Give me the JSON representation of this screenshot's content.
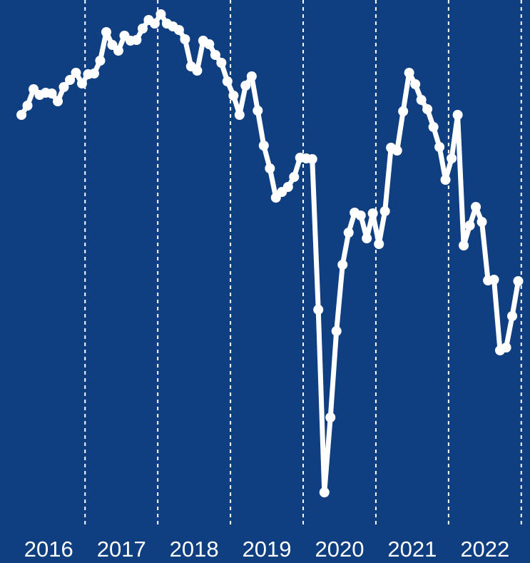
{
  "chart_data": {
    "type": "line",
    "x": [
      2016.125,
      2016.208,
      2016.292,
      2016.375,
      2016.458,
      2016.542,
      2016.625,
      2016.708,
      2016.792,
      2016.875,
      2016.958,
      2017.042,
      2017.125,
      2017.208,
      2017.292,
      2017.375,
      2017.458,
      2017.542,
      2017.625,
      2017.708,
      2017.792,
      2017.875,
      2017.958,
      2018.042,
      2018.125,
      2018.208,
      2018.292,
      2018.375,
      2018.458,
      2018.542,
      2018.625,
      2018.708,
      2018.792,
      2018.875,
      2018.958,
      2019.042,
      2019.125,
      2019.208,
      2019.292,
      2019.375,
      2019.458,
      2019.542,
      2019.625,
      2019.708,
      2019.792,
      2019.875,
      2019.958,
      2020.042,
      2020.125,
      2020.208,
      2020.292,
      2020.375,
      2020.458,
      2020.542,
      2020.625,
      2020.708,
      2020.792,
      2020.875,
      2020.958,
      2021.042,
      2021.125,
      2021.208,
      2021.292,
      2021.375,
      2021.458,
      2021.542,
      2021.625,
      2021.708,
      2021.792,
      2021.875,
      2021.958,
      2022.042,
      2022.125,
      2022.208,
      2022.292,
      2022.375,
      2022.458,
      2022.542,
      2022.625,
      2022.708,
      2022.792,
      2022.875,
      2022.958
    ],
    "values": [
      589,
      602,
      625,
      617,
      620,
      619,
      608,
      628,
      638,
      648,
      633,
      646,
      647,
      665,
      705,
      687,
      679,
      700,
      693,
      694,
      710,
      722,
      717,
      730,
      717,
      713,
      708,
      695,
      657,
      651,
      693,
      688,
      673,
      662,
      636,
      616,
      589,
      630,
      643,
      595,
      546,
      514,
      473,
      481,
      488,
      502,
      529,
      528,
      527,
      316,
      60,
      165,
      286,
      379,
      424,
      452,
      448,
      416,
      451,
      408,
      454,
      543,
      539,
      594,
      648,
      632,
      610,
      597,
      572,
      544,
      498,
      528,
      589,
      406,
      434,
      460,
      439,
      357,
      358,
      259,
      263,
      307,
      356
    ],
    "color": "#ffffff",
    "background": "#0f3f80",
    "xlim": [
      2015.83,
      2023.12
    ],
    "ylim": [
      0,
      750
    ],
    "xticks": [
      {
        "value": 2016.5,
        "label": "2016"
      },
      {
        "value": 2017.5,
        "label": "2017"
      },
      {
        "value": 2018.5,
        "label": "2018"
      },
      {
        "value": 2019.5,
        "label": "2019"
      },
      {
        "value": 2020.5,
        "label": "2020"
      },
      {
        "value": 2021.5,
        "label": "2021"
      },
      {
        "value": 2022.5,
        "label": "2022"
      }
    ],
    "vlines": [
      2017,
      2018,
      2019,
      2020,
      2021,
      2022,
      2023
    ]
  }
}
